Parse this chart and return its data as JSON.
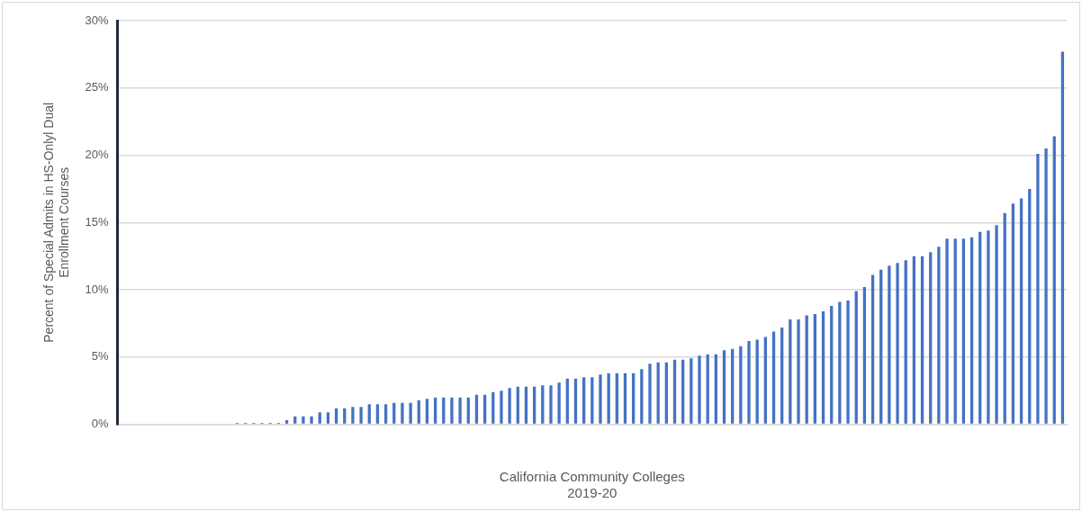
{
  "chart_data": {
    "type": "bar",
    "xlabel": "California Community Colleges\n2019-20",
    "ylabel": "Percent of Special Admits in HS-Onlyl Dual\nEnrollment Courses",
    "categories": [
      null,
      null,
      null,
      null,
      null,
      null,
      null,
      null,
      null,
      null,
      null,
      null,
      null,
      null,
      null,
      null,
      null,
      null,
      null,
      null,
      null,
      null,
      null,
      null,
      null,
      null,
      null,
      null,
      null,
      null,
      null,
      null,
      null,
      null,
      null,
      null,
      null,
      null,
      null,
      null,
      null,
      null,
      null,
      null,
      null,
      null,
      null,
      null,
      null,
      null,
      null,
      null,
      null,
      null,
      null,
      null,
      null,
      null,
      null,
      null,
      null,
      null,
      null,
      null,
      null,
      null,
      null,
      null,
      null,
      null,
      null,
      null,
      null,
      null,
      null,
      null,
      null,
      null,
      null,
      null,
      null,
      null,
      null,
      null,
      null,
      null,
      null,
      null,
      null,
      null,
      null,
      null,
      null,
      null,
      null,
      null,
      null,
      null,
      null,
      null,
      null,
      null,
      null,
      null,
      null,
      null,
      null,
      null,
      null,
      null,
      null,
      null,
      null,
      null,
      null
    ],
    "values": [
      0,
      0,
      0,
      0,
      0,
      0,
      0,
      0,
      0,
      0,
      0,
      0,
      0,
      0,
      0.1,
      0.1,
      0.1,
      0.1,
      0.1,
      0.1,
      0.3,
      0.6,
      0.6,
      0.6,
      0.9,
      0.9,
      1.2,
      1.2,
      1.3,
      1.3,
      1.5,
      1.5,
      1.5,
      1.6,
      1.6,
      1.6,
      1.8,
      1.9,
      2.0,
      2.0,
      2.0,
      2.0,
      2.0,
      2.2,
      2.2,
      2.4,
      2.5,
      2.7,
      2.8,
      2.8,
      2.8,
      2.9,
      2.9,
      3.1,
      3.4,
      3.4,
      3.5,
      3.5,
      3.7,
      3.8,
      3.8,
      3.8,
      3.8,
      4.1,
      4.5,
      4.6,
      4.6,
      4.8,
      4.8,
      4.9,
      5.1,
      5.2,
      5.2,
      5.5,
      5.6,
      5.8,
      6.2,
      6.3,
      6.5,
      6.9,
      7.2,
      7.8,
      7.8,
      8.1,
      8.2,
      8.4,
      8.8,
      9.1,
      9.2,
      9.9,
      10.2,
      11.1,
      11.5,
      11.8,
      12.0,
      12.2,
      12.5,
      12.5,
      12.8,
      13.2,
      13.8,
      13.8,
      13.8,
      13.9,
      14.3,
      14.4,
      14.8,
      15.7,
      16.4,
      16.8,
      17.5,
      20.1,
      20.5,
      21.4,
      27.7
    ],
    "color": "#4472c4",
    "ylim": [
      0,
      30
    ],
    "yticks": [
      {
        "value": 0,
        "label": "0%"
      },
      {
        "value": 5,
        "label": "5%"
      },
      {
        "value": 10,
        "label": "10%"
      },
      {
        "value": 15,
        "label": "15%"
      },
      {
        "value": 20,
        "label": "20%"
      },
      {
        "value": 25,
        "label": "25%"
      },
      {
        "value": 30,
        "label": "30%"
      }
    ],
    "grid": "y"
  }
}
